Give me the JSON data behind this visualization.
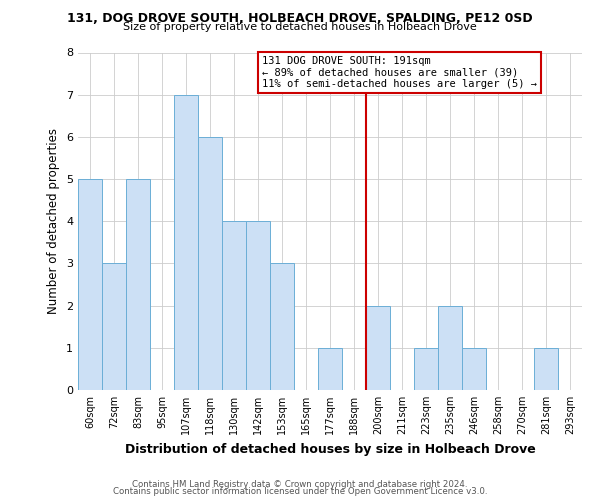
{
  "title": "131, DOG DROVE SOUTH, HOLBEACH DROVE, SPALDING, PE12 0SD",
  "subtitle": "Size of property relative to detached houses in Holbeach Drove",
  "xlabel": "Distribution of detached houses by size in Holbeach Drove",
  "ylabel": "Number of detached properties",
  "footnote1": "Contains HM Land Registry data © Crown copyright and database right 2024.",
  "footnote2": "Contains public sector information licensed under the Open Government Licence v3.0.",
  "bin_labels": [
    "60sqm",
    "72sqm",
    "83sqm",
    "95sqm",
    "107sqm",
    "118sqm",
    "130sqm",
    "142sqm",
    "153sqm",
    "165sqm",
    "177sqm",
    "188sqm",
    "200sqm",
    "211sqm",
    "223sqm",
    "235sqm",
    "246sqm",
    "258sqm",
    "270sqm",
    "281sqm",
    "293sqm"
  ],
  "bar_heights": [
    5,
    3,
    5,
    0,
    7,
    6,
    4,
    4,
    3,
    0,
    1,
    0,
    2,
    0,
    1,
    2,
    1,
    0,
    0,
    1,
    0
  ],
  "bar_color": "#cce0f5",
  "bar_edge_color": "#6baed6",
  "reference_line_x_label": "188sqm",
  "reference_line_color": "#cc0000",
  "annotation_title": "131 DOG DROVE SOUTH: 191sqm",
  "annotation_line1": "← 89% of detached houses are smaller (39)",
  "annotation_line2": "11% of semi-detached houses are larger (5) →",
  "annotation_box_color": "#ffffff",
  "annotation_box_edge_color": "#cc0000",
  "ylim": [
    0,
    8
  ],
  "yticks": [
    0,
    1,
    2,
    3,
    4,
    5,
    6,
    7,
    8
  ],
  "background_color": "#ffffff",
  "grid_color": "#cccccc"
}
